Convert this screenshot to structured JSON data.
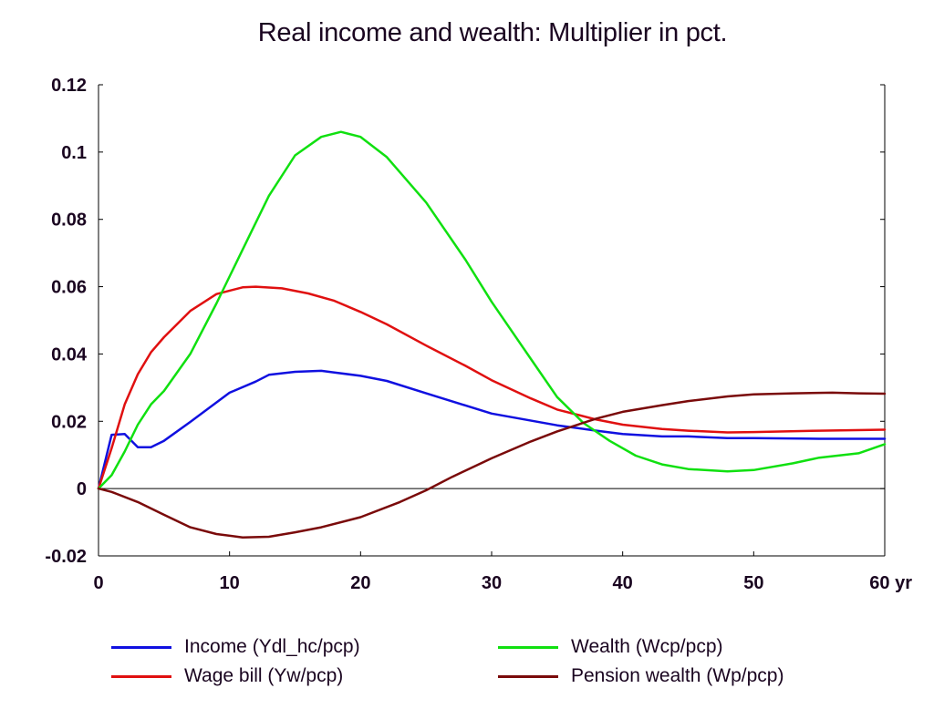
{
  "chart_data": {
    "type": "line",
    "title": "Real income and wealth: Multiplier in pct.",
    "xlim": [
      0,
      60
    ],
    "ylim": [
      -0.02,
      0.12
    ],
    "x_ticks": [
      "0",
      "10",
      "20",
      "30",
      "40",
      "50",
      "60 yr"
    ],
    "y_ticks": [
      "0.12",
      "0.1",
      "0.08",
      "0.06",
      "0.04",
      "0.02",
      "0",
      "-0.02"
    ],
    "zero_line": true,
    "legend_position": "bottom",
    "series": [
      {
        "name": "Income (Ydl_hc/pcp)",
        "color": "#1010e0",
        "points": [
          [
            0,
            0
          ],
          [
            1,
            0.016
          ],
          [
            2,
            0.0162
          ],
          [
            3,
            0.0123
          ],
          [
            4,
            0.0123
          ],
          [
            5,
            0.0142
          ],
          [
            7,
            0.0198
          ],
          [
            10,
            0.0285
          ],
          [
            12,
            0.0318
          ],
          [
            13,
            0.0338
          ],
          [
            15,
            0.0347
          ],
          [
            17,
            0.035
          ],
          [
            18,
            0.0345
          ],
          [
            20,
            0.0335
          ],
          [
            22,
            0.032
          ],
          [
            25,
            0.0283
          ],
          [
            30,
            0.0223
          ],
          [
            35,
            0.0188
          ],
          [
            38,
            0.0172
          ],
          [
            40,
            0.0162
          ],
          [
            43,
            0.0155
          ],
          [
            45,
            0.0155
          ],
          [
            48,
            0.015
          ],
          [
            50,
            0.015
          ],
          [
            55,
            0.0148
          ],
          [
            60,
            0.0148
          ]
        ]
      },
      {
        "name": "Wage bill (Yw/pcp)",
        "color": "#e01010",
        "points": [
          [
            0,
            0
          ],
          [
            1,
            0.012
          ],
          [
            2,
            0.025
          ],
          [
            3,
            0.034
          ],
          [
            4,
            0.0405
          ],
          [
            5,
            0.045
          ],
          [
            7,
            0.0528
          ],
          [
            9,
            0.0578
          ],
          [
            11,
            0.0598
          ],
          [
            12,
            0.06
          ],
          [
            14,
            0.0595
          ],
          [
            16,
            0.058
          ],
          [
            18,
            0.0558
          ],
          [
            20,
            0.0525
          ],
          [
            22,
            0.0488
          ],
          [
            25,
            0.0425
          ],
          [
            28,
            0.0365
          ],
          [
            30,
            0.0322
          ],
          [
            33,
            0.0268
          ],
          [
            35,
            0.0235
          ],
          [
            38,
            0.0205
          ],
          [
            40,
            0.019
          ],
          [
            43,
            0.0177
          ],
          [
            45,
            0.0172
          ],
          [
            48,
            0.0167
          ],
          [
            50,
            0.0168
          ],
          [
            55,
            0.0172
          ],
          [
            60,
            0.0175
          ]
        ]
      },
      {
        "name": "Wealth (Wcp/pcp)",
        "color": "#10e010",
        "points": [
          [
            0,
            0
          ],
          [
            1,
            0.004
          ],
          [
            2,
            0.011
          ],
          [
            3,
            0.019
          ],
          [
            4,
            0.025
          ],
          [
            5,
            0.029
          ],
          [
            7,
            0.04
          ],
          [
            9,
            0.055
          ],
          [
            11,
            0.071
          ],
          [
            13,
            0.087
          ],
          [
            15,
            0.099
          ],
          [
            17,
            0.1045
          ],
          [
            18.5,
            0.106
          ],
          [
            20,
            0.1045
          ],
          [
            22,
            0.0985
          ],
          [
            25,
            0.085
          ],
          [
            28,
            0.068
          ],
          [
            30,
            0.0555
          ],
          [
            33,
            0.0385
          ],
          [
            35,
            0.0272
          ],
          [
            37,
            0.0195
          ],
          [
            39,
            0.0142
          ],
          [
            41,
            0.0098
          ],
          [
            43,
            0.0072
          ],
          [
            45,
            0.0058
          ],
          [
            48,
            0.0051
          ],
          [
            50,
            0.0055
          ],
          [
            53,
            0.0075
          ],
          [
            55,
            0.0092
          ],
          [
            58,
            0.0105
          ],
          [
            60,
            0.0132
          ]
        ]
      },
      {
        "name": "Pension wealth (Wp/pcp)",
        "color": "#7a0a0a",
        "points": [
          [
            0,
            0
          ],
          [
            1,
            -0.001
          ],
          [
            3,
            -0.004
          ],
          [
            5,
            -0.0078
          ],
          [
            7,
            -0.0115
          ],
          [
            9,
            -0.0135
          ],
          [
            11,
            -0.0145
          ],
          [
            13,
            -0.0143
          ],
          [
            15,
            -0.013
          ],
          [
            17,
            -0.0115
          ],
          [
            20,
            -0.0085
          ],
          [
            23,
            -0.004
          ],
          [
            25,
            -0.0005
          ],
          [
            27,
            0.0035
          ],
          [
            30,
            0.009
          ],
          [
            33,
            0.014
          ],
          [
            35,
            0.017
          ],
          [
            38,
            0.0208
          ],
          [
            40,
            0.0228
          ],
          [
            43,
            0.0248
          ],
          [
            45,
            0.026
          ],
          [
            48,
            0.0274
          ],
          [
            50,
            0.028
          ],
          [
            53,
            0.0283
          ],
          [
            56,
            0.0285
          ],
          [
            58,
            0.0283
          ],
          [
            60,
            0.0282
          ]
        ]
      }
    ]
  }
}
